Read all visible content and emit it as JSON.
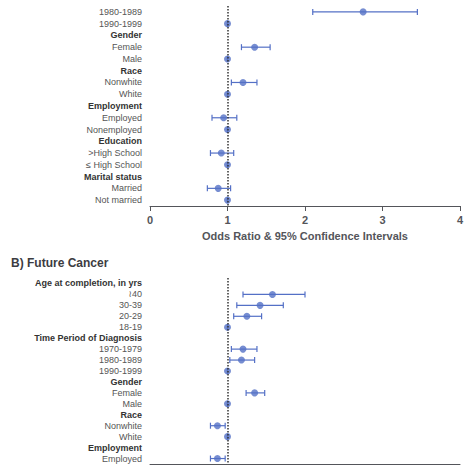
{
  "chart_data": [
    {
      "type": "forest",
      "categories": [
        "1980-1989",
        "1990-1999",
        "Gender",
        "Female",
        "Male",
        "Race",
        "Nonwhite",
        "White",
        "Employment",
        "Employed",
        "Nonemployed",
        "Education",
        ">High School",
        "≤ High School",
        "Marital status",
        "Married",
        "Not married"
      ],
      "values": [
        2.75,
        1.0,
        null,
        1.35,
        1.0,
        null,
        1.2,
        1.0,
        null,
        0.95,
        1.0,
        null,
        0.92,
        1.0,
        null,
        0.88,
        1.0
      ],
      "lo": [
        2.1,
        1.0,
        null,
        1.18,
        1.0,
        null,
        1.05,
        1.0,
        null,
        0.8,
        1.0,
        null,
        0.78,
        1.0,
        null,
        0.74,
        1.0
      ],
      "hi": [
        3.45,
        1.0,
        null,
        1.55,
        1.0,
        null,
        1.38,
        1.0,
        null,
        1.12,
        1.0,
        null,
        1.08,
        1.0,
        null,
        1.04,
        1.0
      ],
      "xlabel": "Odds Ratio & 95% Confidence Intervals",
      "xlim": [
        0,
        4
      ],
      "xticks": [
        0,
        1,
        2,
        3,
        4
      ],
      "vline": 1.0,
      "grid": false
    },
    {
      "type": "forest",
      "title": "B) Future Cancer",
      "categories": [
        "Age at completion, in yrs",
        "≀40",
        "30-39",
        "20-29",
        "18-19",
        "Time Period of Diagnosis",
        "1970-1979",
        "1980-1989",
        "1990-1999",
        "Gender",
        "Female",
        "Male",
        "Race",
        "Nonwhite",
        "White",
        "Employment",
        "Employed"
      ],
      "values": [
        null,
        1.58,
        1.42,
        1.25,
        1.0,
        null,
        1.2,
        1.18,
        1.0,
        null,
        1.35,
        1.0,
        null,
        0.87,
        1.0,
        null,
        0.87
      ],
      "lo": [
        null,
        1.2,
        1.12,
        1.08,
        1.0,
        null,
        1.05,
        1.03,
        1.0,
        null,
        1.24,
        1.0,
        null,
        0.78,
        1.0,
        null,
        0.78
      ],
      "hi": [
        null,
        2.0,
        1.72,
        1.44,
        1.0,
        null,
        1.38,
        1.35,
        1.0,
        null,
        1.48,
        1.0,
        null,
        0.97,
        1.0,
        null,
        0.97
      ],
      "xlim": [
        0,
        4
      ],
      "vline": 1.0,
      "grid": false,
      "tick_labels": "y"
    }
  ]
}
